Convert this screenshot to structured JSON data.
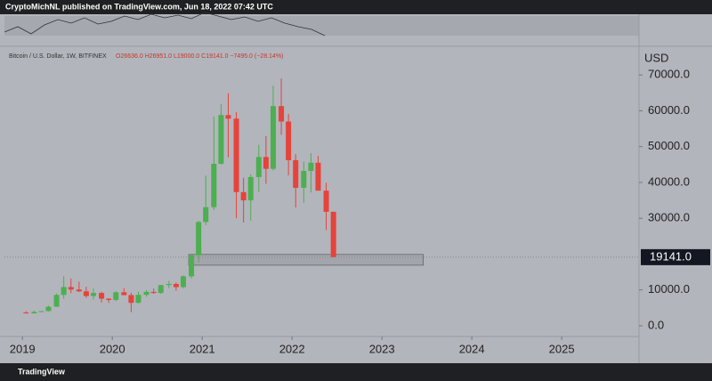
{
  "header": "CryptoMichNL published on TradingView.com, Jun 18, 2022 07:42 UTC",
  "footer": "TradingView",
  "chart_data": {
    "type": "candlestick",
    "symbol": "Bitcoin / U.S. Dollar, 1W, BITFINEX",
    "ohlc_label": "O26636.0 H26951.0 L19000.0 C19141.0 −7495.0 (−28.14%)",
    "y_unit": "USD",
    "x": [
      2019.04,
      2019.13,
      2019.21,
      2019.29,
      2019.38,
      2019.46,
      2019.54,
      2019.63,
      2019.71,
      2019.79,
      2019.88,
      2019.96,
      2020.04,
      2020.13,
      2020.21,
      2020.29,
      2020.38,
      2020.46,
      2020.54,
      2020.63,
      2020.71,
      2020.79,
      2020.88,
      2020.96,
      2021.04,
      2021.13,
      2021.21,
      2021.29,
      2021.38,
      2021.46,
      2021.54,
      2021.63,
      2021.71,
      2021.79,
      2021.88,
      2021.96,
      2022.04,
      2022.13,
      2022.21,
      2022.29,
      2022.38,
      2022.46
    ],
    "open": [
      3700,
      3450,
      3850,
      4100,
      5300,
      8600,
      10800,
      10100,
      9600,
      8300,
      9150,
      7550,
      7200,
      9350,
      8550,
      6400,
      8630,
      9450,
      9140,
      11350,
      11650,
      10780,
      13800,
      19700,
      28950,
      33100,
      45200,
      58800,
      57800,
      37300,
      35000,
      41500,
      47100,
      43800,
      61300,
      57000,
      46200,
      38500,
      43200,
      45500,
      37700,
      31800
    ],
    "high": [
      4100,
      4200,
      4100,
      5600,
      9000,
      13800,
      13200,
      12300,
      10900,
      10400,
      9500,
      7700,
      9600,
      10500,
      9200,
      9500,
      10000,
      10400,
      11400,
      12500,
      12100,
      14100,
      19900,
      29300,
      41900,
      58400,
      61800,
      64900,
      59600,
      41300,
      42300,
      50500,
      52900,
      67000,
      69000,
      59100,
      47900,
      45800,
      48200,
      47400,
      39900,
      31900
    ],
    "low": [
      3400,
      3400,
      3700,
      4000,
      5300,
      7500,
      9100,
      9400,
      7800,
      7300,
      6500,
      6400,
      6900,
      8500,
      3800,
      6200,
      8100,
      8900,
      8900,
      10500,
      9800,
      10400,
      13200,
      17600,
      28100,
      32300,
      45000,
      47000,
      30000,
      28800,
      29300,
      37300,
      39600,
      43300,
      53300,
      42000,
      33000,
      34300,
      37200,
      37700,
      26700,
      19000
    ],
    "close": [
      3450,
      3850,
      4100,
      5300,
      8600,
      10800,
      10100,
      9600,
      8300,
      9150,
      7550,
      7200,
      9350,
      8550,
      6400,
      8630,
      9450,
      9140,
      11350,
      11650,
      10780,
      13800,
      19700,
      28950,
      33100,
      45200,
      58800,
      57800,
      37300,
      35000,
      41500,
      47100,
      43800,
      61300,
      57000,
      46200,
      38500,
      43200,
      45500,
      37700,
      31800,
      19141
    ],
    "up_color": "#4caf50",
    "down_color": "#e5433b",
    "zone": {
      "x": [
        2020.85,
        2023.46
      ],
      "y": [
        16900,
        19900
      ]
    },
    "last_price": {
      "value": 19141,
      "label": "19141.0"
    },
    "xlim": [
      2018.8,
      2025.86
    ],
    "xticks": [
      2019,
      2020,
      2021,
      2022,
      2023,
      2024,
      2025
    ],
    "ylim": [
      -3000,
      77000
    ],
    "yticks": [
      {
        "value": 0,
        "label": "0.0"
      },
      {
        "value": 10000,
        "label": "10000.0"
      },
      {
        "value": 30000,
        "label": "30000.0"
      },
      {
        "value": 40000,
        "label": "40000.0"
      },
      {
        "value": 50000,
        "label": "50000.0"
      },
      {
        "value": 60000,
        "label": "60000.0"
      },
      {
        "value": 70000,
        "label": "70000.0"
      }
    ]
  }
}
